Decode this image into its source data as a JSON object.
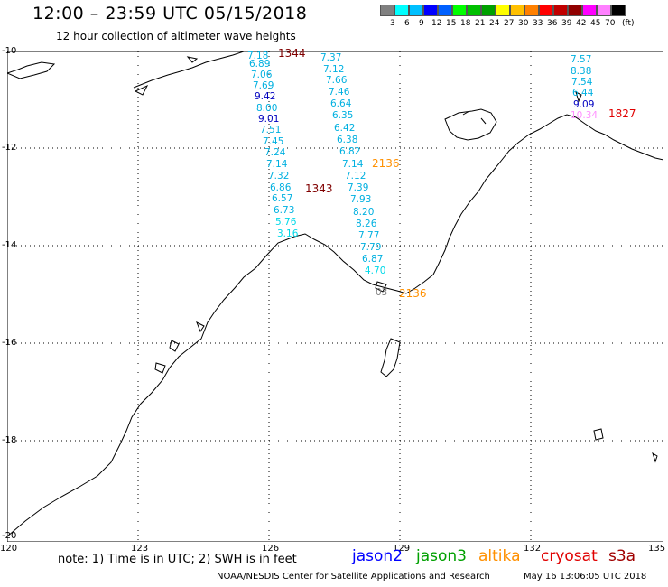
{
  "header": {
    "title": "12:00 – 23:59 UTC 05/15/2018",
    "subtitle": "12 hour collection of altimeter wave heights"
  },
  "legend": {
    "unit": "(ft)",
    "colors": [
      "#808080",
      "#00ffff",
      "#00c0ff",
      "#0000ff",
      "#0060ff",
      "#00ff00",
      "#00c000",
      "#00a000",
      "#ffff00",
      "#ffc000",
      "#ff8000",
      "#ff0000",
      "#c00000",
      "#900000",
      "#ff00ff",
      "#ff80ff",
      "#000000"
    ],
    "labels": [
      "3",
      "6",
      "9",
      "12",
      "15",
      "18",
      "21",
      "24",
      "27",
      "30",
      "33",
      "36",
      "39",
      "42",
      "45",
      "70"
    ]
  },
  "axes": {
    "lat_labels": [
      "-10",
      "-12",
      "-14",
      "-16",
      "-18",
      "-20"
    ],
    "lon_labels": [
      "120",
      "123",
      "126",
      "129",
      "132",
      "135"
    ]
  },
  "observations": [
    {
      "v": "7.18",
      "c": "#00b0e0"
    },
    {
      "v": "6.89",
      "c": "#00b0e0"
    },
    {
      "v": "7.06",
      "c": "#00b0e0"
    },
    {
      "v": "7.69",
      "c": "#00b0e0"
    },
    {
      "v": "9.42",
      "c": "#0000c0"
    },
    {
      "v": "8.00",
      "c": "#00b0e0"
    },
    {
      "v": "9.01",
      "c": "#0000c0"
    },
    {
      "v": "7.51",
      "c": "#00b0e0"
    },
    {
      "v": "7.45",
      "c": "#00b0e0"
    },
    {
      "v": "7.24",
      "c": "#00b0e0"
    },
    {
      "v": "7.14",
      "c": "#00b0e0"
    },
    {
      "v": "7.32",
      "c": "#00b0e0"
    },
    {
      "v": "6.86",
      "c": "#00b0e0"
    },
    {
      "v": "6.57",
      "c": "#00b0e0"
    },
    {
      "v": "6.73",
      "c": "#00b0e0"
    },
    {
      "v": "5.76",
      "c": "#00d8e8"
    },
    {
      "v": "3.16",
      "c": "#00d8e8"
    },
    {
      "v": "7.37",
      "c": "#00b0e0"
    },
    {
      "v": "7.12",
      "c": "#00b0e0"
    },
    {
      "v": "7.66",
      "c": "#00b0e0"
    },
    {
      "v": "7.46",
      "c": "#00b0e0"
    },
    {
      "v": "6.64",
      "c": "#00b0e0"
    },
    {
      "v": "6.35",
      "c": "#00b0e0"
    },
    {
      "v": "6.42",
      "c": "#00b0e0"
    },
    {
      "v": "6.38",
      "c": "#00b0e0"
    },
    {
      "v": "6.82",
      "c": "#00b0e0"
    },
    {
      "v": "7.14",
      "c": "#00b0e0"
    },
    {
      "v": "7.12",
      "c": "#00b0e0"
    },
    {
      "v": "7.39",
      "c": "#00b0e0"
    },
    {
      "v": "7.93",
      "c": "#00b0e0"
    },
    {
      "v": "8.20",
      "c": "#00b0e0"
    },
    {
      "v": "8.26",
      "c": "#00b0e0"
    },
    {
      "v": "7.77",
      "c": "#00b0e0"
    },
    {
      "v": "7.79",
      "c": "#00b0e0"
    },
    {
      "v": "6.87",
      "c": "#00b0e0"
    },
    {
      "v": "4.70",
      "c": "#00d8e8"
    },
    {
      "v": "7.57",
      "c": "#00b0e0"
    },
    {
      "v": "8.38",
      "c": "#00b0e0"
    },
    {
      "v": "7.54",
      "c": "#00b0e0"
    },
    {
      "v": "6.44",
      "c": "#00b0e0"
    },
    {
      "v": "9.09",
      "c": "#0000c0"
    },
    {
      "v": "10.34",
      "c": "#ff90ff"
    },
    {
      "v": "03",
      "c": "#808080"
    }
  ],
  "pass_times": [
    {
      "v": "1344",
      "c": "#800000"
    },
    {
      "v": "1343",
      "c": "#800000"
    },
    {
      "v": "2136",
      "c": "#ff9000"
    },
    {
      "v": "1827",
      "c": "#e00000"
    },
    {
      "v": "2136",
      "c": "#ff9000"
    }
  ],
  "footer": {
    "note": "note: 1) Time is in UTC; 2) SWH is in feet",
    "satellites": [
      {
        "name": "jason2",
        "color": "#0000ff"
      },
      {
        "name": "jason3",
        "color": "#00a000"
      },
      {
        "name": "altika",
        "color": "#ff9000"
      },
      {
        "name": "cryosat",
        "color": "#e00000"
      },
      {
        "name": "s3a",
        "color": "#a00000"
      }
    ],
    "credit": "NOAA/NESDIS Center for Satellite Applications and Research",
    "timestamp": "May 16 13:06:05 UTC 2018"
  }
}
